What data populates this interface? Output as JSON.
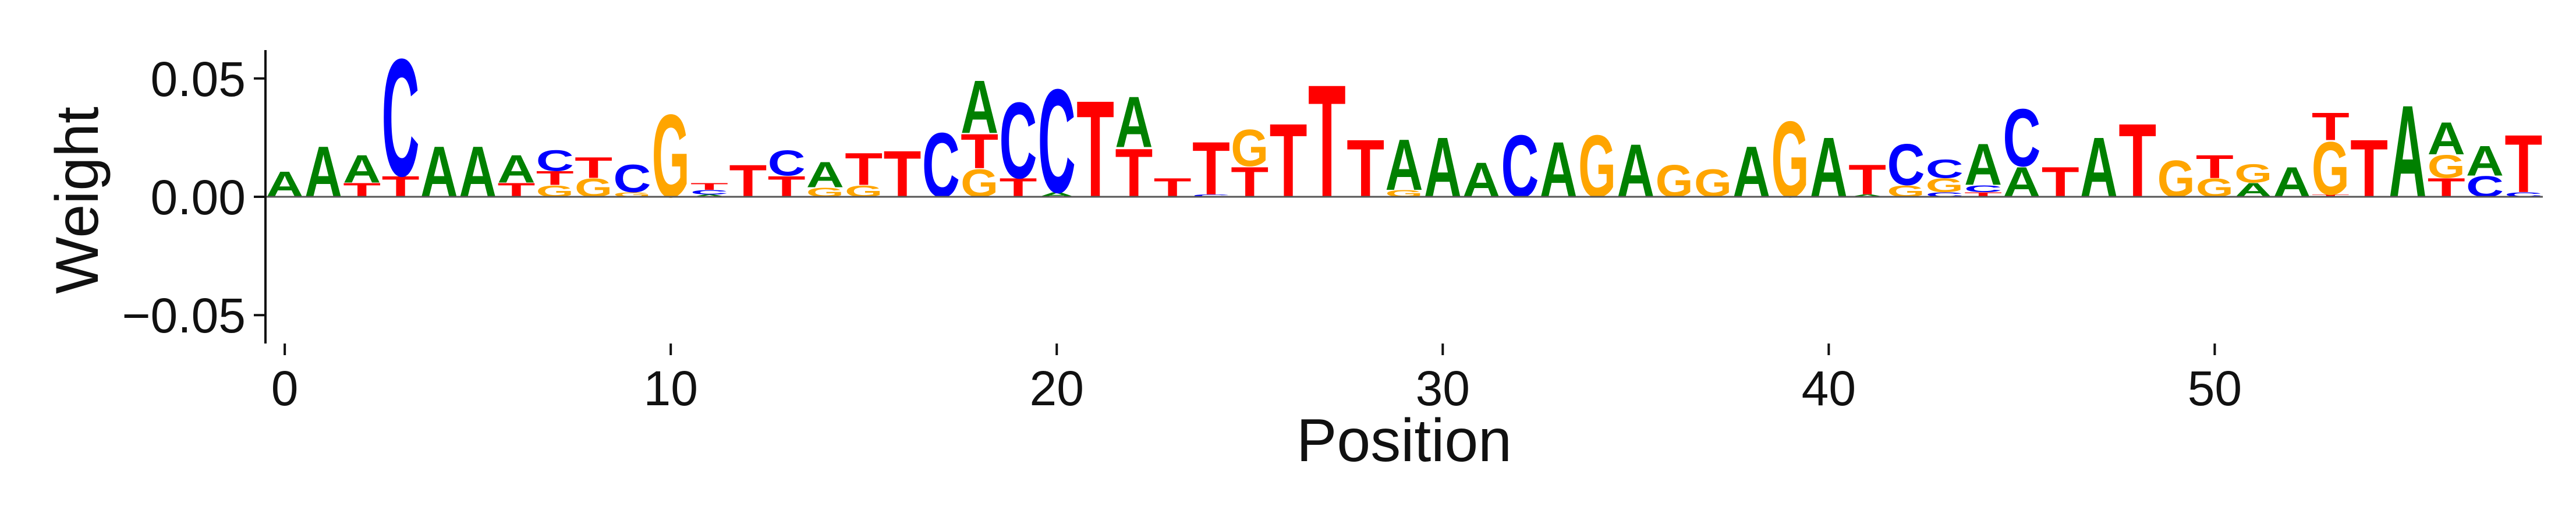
{
  "chart_data": {
    "type": "sequence_logo",
    "xlabel": "Position",
    "ylabel": "Weight",
    "xlim": [
      -0.5,
      58.5
    ],
    "ylim": [
      -0.062,
      0.062
    ],
    "xticks": [
      0,
      10,
      20,
      30,
      40,
      50
    ],
    "xtick_labels": [
      "0",
      "10",
      "20",
      "30",
      "40",
      "50"
    ],
    "yticks": [
      -0.05,
      0.0,
      0.05
    ],
    "ytick_labels": [
      "−0.05",
      "0.00",
      "0.05"
    ],
    "base_colors": {
      "A": "#008000",
      "C": "#0000ff",
      "G": "#ffa500",
      "T": "#ff0000"
    },
    "positions": [
      [
        [
          "A",
          0.011
        ]
      ],
      [
        [
          "A",
          0.022
        ]
      ],
      [
        [
          "T",
          0.006
        ],
        [
          "A",
          0.012
        ]
      ],
      [
        [
          "T",
          0.009
        ],
        [
          "C",
          0.051
        ]
      ],
      [
        [
          "A",
          0.022
        ]
      ],
      [
        [
          "A",
          0.022
        ]
      ],
      [
        [
          "T",
          0.006
        ],
        [
          "A",
          0.012
        ]
      ],
      [
        [
          "G",
          0.005
        ],
        [
          "T",
          0.006
        ],
        [
          "C",
          0.009
        ]
      ],
      [
        [
          "G",
          0.008
        ],
        [
          "T",
          0.009
        ]
      ],
      [
        [
          "G",
          0.002
        ],
        [
          "C",
          0.012
        ]
      ],
      [
        [
          "G",
          0.036
        ]
      ],
      [
        [
          "A",
          0.001
        ],
        [
          "C",
          0.002
        ],
        [
          "T",
          0.003
        ]
      ],
      [
        [
          "T",
          0.014
        ]
      ],
      [
        [
          "T",
          0.009
        ],
        [
          "C",
          0.011
        ]
      ],
      [
        [
          "G",
          0.004
        ],
        [
          "A",
          0.011
        ]
      ],
      [
        [
          "G",
          0.005
        ],
        [
          "T",
          0.014
        ]
      ],
      [
        [
          "T",
          0.02
        ]
      ],
      [
        [
          "C",
          0.028
        ]
      ],
      [
        [
          "G",
          0.012
        ],
        [
          "T",
          0.015
        ],
        [
          "A",
          0.023
        ]
      ],
      [
        [
          "T",
          0.008
        ],
        [
          "C",
          0.033
        ]
      ],
      [
        [
          "A",
          0.002
        ],
        [
          "C",
          0.045
        ]
      ],
      [
        [
          "T",
          0.042
        ]
      ],
      [
        [
          "T",
          0.021
        ],
        [
          "A",
          0.022
        ]
      ],
      [
        [
          "T",
          0.008
        ]
      ],
      [
        [
          "C",
          0.001
        ],
        [
          "T",
          0.023
        ]
      ],
      [
        [
          "T",
          0.013
        ],
        [
          "G",
          0.016
        ]
      ],
      [
        [
          "T",
          0.032
        ]
      ],
      [
        [
          "T",
          0.049
        ]
      ],
      [
        [
          "T",
          0.025
        ]
      ],
      [
        [
          "G",
          0.003
        ],
        [
          "A",
          0.022
        ]
      ],
      [
        [
          "A",
          0.026
        ]
      ],
      [
        [
          "A",
          0.015
        ]
      ],
      [
        [
          "C",
          0.027
        ]
      ],
      [
        [
          "A",
          0.024
        ]
      ],
      [
        [
          "G",
          0.027
        ]
      ],
      [
        [
          "A",
          0.023
        ]
      ],
      [
        [
          "G",
          0.014
        ]
      ],
      [
        [
          "G",
          0.012
        ]
      ],
      [
        [
          "A",
          0.022
        ]
      ],
      [
        [
          "G",
          0.033
        ]
      ],
      [
        [
          "A",
          0.026
        ]
      ],
      [
        [
          "A",
          0.001
        ],
        [
          "T",
          0.013
        ]
      ],
      [
        [
          "G",
          0.005
        ],
        [
          "C",
          0.018
        ]
      ],
      [
        [
          "C",
          0.002
        ],
        [
          "G",
          0.006
        ],
        [
          "C",
          0.008
        ]
      ],
      [
        [
          "T",
          0.002
        ],
        [
          "C",
          0.003
        ],
        [
          "A",
          0.018
        ]
      ],
      [
        [
          "A",
          0.013
        ],
        [
          "C",
          0.025
        ]
      ],
      [
        [
          "T",
          0.013
        ]
      ],
      [
        [
          "A",
          0.026
        ]
      ],
      [
        [
          "T",
          0.032
        ]
      ],
      [
        [
          "G",
          0.016
        ]
      ],
      [
        [
          "G",
          0.008
        ],
        [
          "T",
          0.01
        ]
      ],
      [
        [
          "A",
          0.006
        ],
        [
          "G",
          0.008
        ]
      ],
      [
        [
          "A",
          0.013
        ]
      ],
      [
        [
          "T",
          0.001
        ],
        [
          "G",
          0.023
        ],
        [
          "T",
          0.012
        ]
      ],
      [
        [
          "T",
          0.025
        ]
      ],
      [
        [
          "A",
          0.04
        ]
      ],
      [
        [
          "T",
          0.008
        ],
        [
          "G",
          0.01
        ],
        [
          "A",
          0.014
        ]
      ],
      [
        [
          "C",
          0.009
        ],
        [
          "A",
          0.013
        ]
      ],
      [
        [
          "C",
          0.002
        ],
        [
          "T",
          0.025
        ]
      ]
    ]
  }
}
